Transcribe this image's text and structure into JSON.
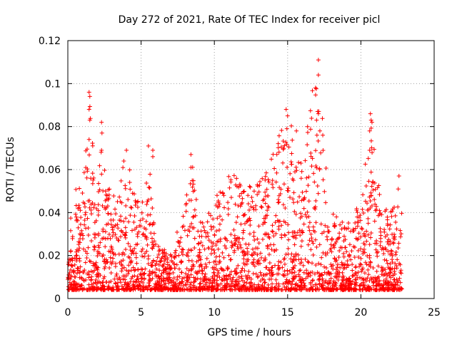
{
  "chart_data": {
    "type": "scatter",
    "title": "Day 272 of 2021, Rate Of TEC Index for receiver picl",
    "xlabel": "GPS time / hours",
    "ylabel": "ROTI / TECUs",
    "xlim": [
      0,
      25
    ],
    "ylim": [
      0,
      0.12
    ],
    "xticks": [
      0,
      5,
      10,
      15,
      20,
      25
    ],
    "yticks": [
      0,
      0.02,
      0.04,
      0.06,
      0.08,
      0.1,
      0.12
    ],
    "xtick_labels": [
      "0",
      "5",
      "10",
      "15",
      "20",
      "25"
    ],
    "ytick_labels": [
      "0",
      "0.02",
      "0.04",
      "0.06",
      "0.08",
      "0.1",
      "0.12"
    ],
    "grid": true,
    "marker": "+",
    "color": "#ff0000",
    "data_range_hours": [
      0,
      22.8
    ],
    "envelope": [
      {
        "x": 0.0,
        "ymax": 0.035
      },
      {
        "x": 0.5,
        "ymax": 0.053
      },
      {
        "x": 1.0,
        "ymax": 0.05
      },
      {
        "x": 1.5,
        "ymax": 0.096
      },
      {
        "x": 2.0,
        "ymax": 0.045
      },
      {
        "x": 2.3,
        "ymax": 0.082
      },
      {
        "x": 3.0,
        "ymax": 0.045
      },
      {
        "x": 4.0,
        "ymax": 0.069
      },
      {
        "x": 4.5,
        "ymax": 0.05
      },
      {
        "x": 5.2,
        "ymax": 0.045
      },
      {
        "x": 5.5,
        "ymax": 0.07
      },
      {
        "x": 6.0,
        "ymax": 0.025
      },
      {
        "x": 7.0,
        "ymax": 0.022
      },
      {
        "x": 8.0,
        "ymax": 0.045
      },
      {
        "x": 8.5,
        "ymax": 0.067
      },
      {
        "x": 9.0,
        "ymax": 0.035
      },
      {
        "x": 10.0,
        "ymax": 0.045
      },
      {
        "x": 11.0,
        "ymax": 0.063
      },
      {
        "x": 12.0,
        "ymax": 0.05
      },
      {
        "x": 13.0,
        "ymax": 0.056
      },
      {
        "x": 14.0,
        "ymax": 0.068
      },
      {
        "x": 15.0,
        "ymax": 0.088
      },
      {
        "x": 15.5,
        "ymax": 0.073
      },
      {
        "x": 16.0,
        "ymax": 0.065
      },
      {
        "x": 17.0,
        "ymax": 0.111
      },
      {
        "x": 17.5,
        "ymax": 0.076
      },
      {
        "x": 18.0,
        "ymax": 0.04
      },
      {
        "x": 19.0,
        "ymax": 0.035
      },
      {
        "x": 20.0,
        "ymax": 0.045
      },
      {
        "x": 20.7,
        "ymax": 0.086
      },
      {
        "x": 21.5,
        "ymax": 0.045
      },
      {
        "x": 22.0,
        "ymax": 0.04
      },
      {
        "x": 22.5,
        "ymax": 0.057
      },
      {
        "x": 22.8,
        "ymax": 0.045
      }
    ],
    "spikes": [
      {
        "x": 1.45,
        "y": 0.096
      },
      {
        "x": 1.5,
        "y": 0.094
      },
      {
        "x": 1.45,
        "y": 0.088
      },
      {
        "x": 1.5,
        "y": 0.083
      },
      {
        "x": 1.45,
        "y": 0.074
      },
      {
        "x": 2.3,
        "y": 0.082
      },
      {
        "x": 2.3,
        "y": 0.069
      },
      {
        "x": 4.0,
        "y": 0.069
      },
      {
        "x": 5.5,
        "y": 0.071
      },
      {
        "x": 5.8,
        "y": 0.069
      },
      {
        "x": 5.8,
        "y": 0.066
      },
      {
        "x": 8.4,
        "y": 0.067
      },
      {
        "x": 8.4,
        "y": 0.061
      },
      {
        "x": 14.9,
        "y": 0.088
      },
      {
        "x": 15.0,
        "y": 0.085
      },
      {
        "x": 14.95,
        "y": 0.079
      },
      {
        "x": 15.6,
        "y": 0.078
      },
      {
        "x": 17.1,
        "y": 0.111
      },
      {
        "x": 17.1,
        "y": 0.104
      },
      {
        "x": 17.05,
        "y": 0.087
      },
      {
        "x": 17.1,
        "y": 0.086
      },
      {
        "x": 17.0,
        "y": 0.076
      },
      {
        "x": 17.4,
        "y": 0.076
      },
      {
        "x": 20.65,
        "y": 0.086
      },
      {
        "x": 20.7,
        "y": 0.083
      },
      {
        "x": 20.6,
        "y": 0.078
      },
      {
        "x": 20.6,
        "y": 0.069
      },
      {
        "x": 22.6,
        "y": 0.057
      }
    ]
  }
}
